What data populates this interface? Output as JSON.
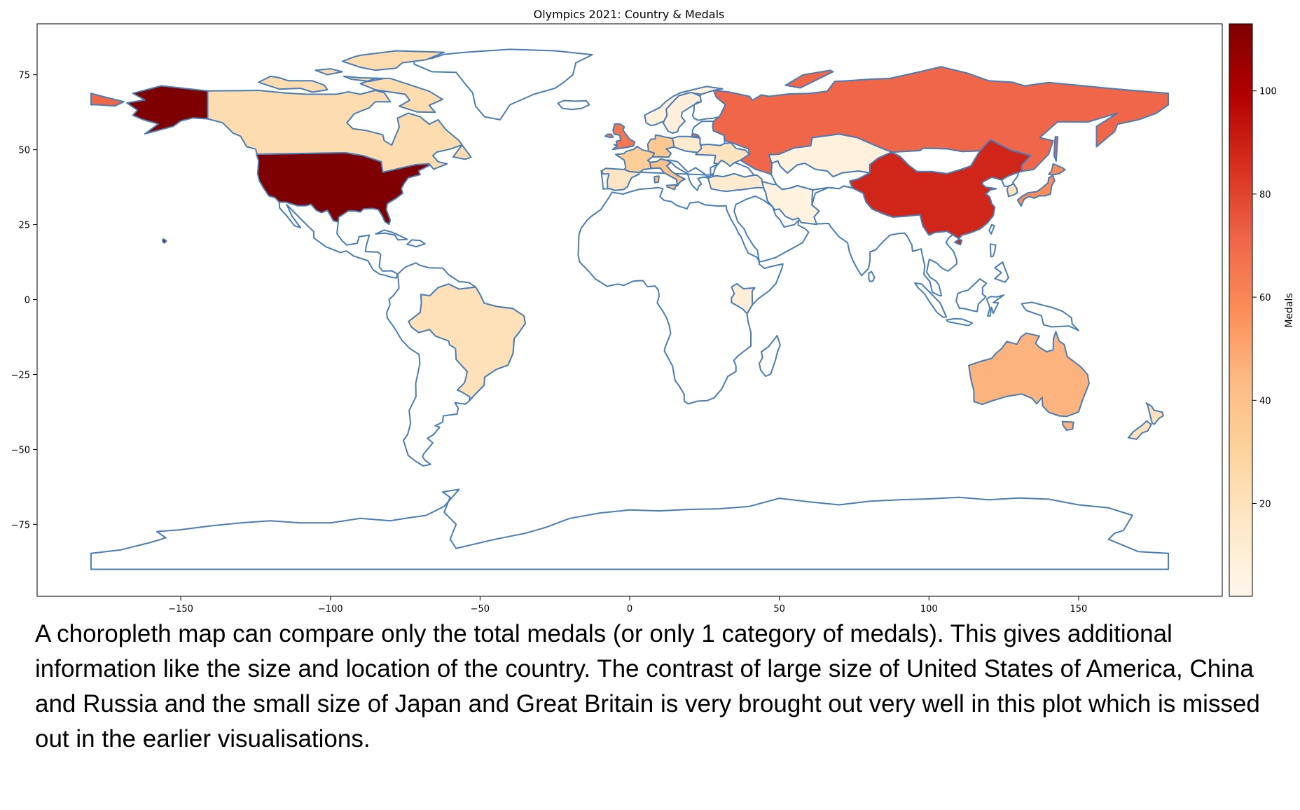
{
  "map": {
    "title": "Olympics 2021: Country & Medals",
    "projection": "plate-carree",
    "x_ticks": [
      -150,
      -100,
      -50,
      0,
      50,
      100,
      150
    ],
    "y_ticks": [
      75,
      50,
      25,
      0,
      -25,
      -50,
      -75
    ],
    "x_range": [
      -198,
      198
    ],
    "y_range": [
      -99,
      92
    ],
    "border_color": "#4a7db6",
    "no_data_fill": "#ffffff",
    "countries": [
      {
        "name": "United States of America",
        "medals": 113
      },
      {
        "name": "China",
        "medals": 88
      },
      {
        "name": "Russia",
        "medals": 71
      },
      {
        "name": "Japan",
        "medals": 58
      },
      {
        "name": "United Kingdom",
        "medals": 65
      },
      {
        "name": "Australia",
        "medals": 46
      },
      {
        "name": "Italy",
        "medals": 40
      },
      {
        "name": "Germany",
        "medals": 37
      },
      {
        "name": "France",
        "medals": 33
      },
      {
        "name": "Canada",
        "medals": 24
      },
      {
        "name": "Brazil",
        "medals": 21
      },
      {
        "name": "New Zealand",
        "medals": 20
      },
      {
        "name": "Spain",
        "medals": 17
      },
      {
        "name": "Iran",
        "medals": 7
      },
      {
        "name": "Kenya",
        "medals": 10
      },
      {
        "name": "Turkey",
        "medals": 13
      },
      {
        "name": "Ukraine",
        "medals": 19
      },
      {
        "name": "Poland",
        "medals": 14
      },
      {
        "name": "Norway",
        "medals": 8
      },
      {
        "name": "Sweden",
        "medals": 9
      },
      {
        "name": "Kazakhstan",
        "medals": 8
      },
      {
        "name": "South Korea",
        "medals": 20
      }
    ]
  },
  "colorbar": {
    "label": "Medals",
    "min": 2,
    "max": 113,
    "ticks": [
      20,
      40,
      60,
      80,
      100
    ],
    "colormap": "OrRd",
    "stops": [
      "#fff7ec",
      "#fee8c8",
      "#fdd49e",
      "#fdbb84",
      "#fc8d59",
      "#ef6548",
      "#d7301f",
      "#b30000",
      "#7f0000"
    ]
  },
  "caption": "A choropleth map can compare only the total medals (or only 1 category of medals). This gives additional information like the size and location of the country. The contrast of large size of United States of America, China and Russia and the small size of Japan and Great Britain is very brought out very well in this plot which is missed out in the earlier visualisations."
}
